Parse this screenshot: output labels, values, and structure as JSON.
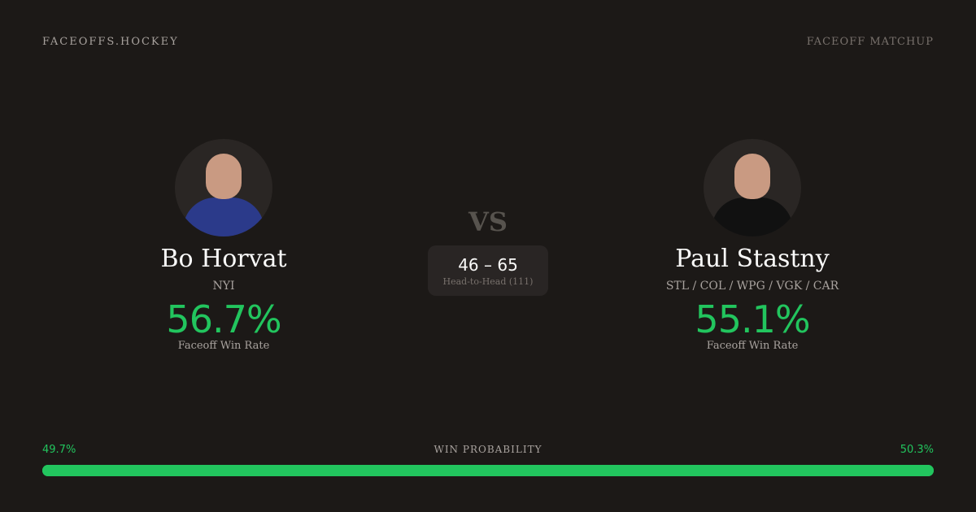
{
  "header": {
    "brand": "FACEOFFS.HOCKEY",
    "page_kind": "FACEOFF MATCHUP"
  },
  "players": [
    {
      "name": "Bo Horvat",
      "team": "NYI",
      "win_rate": "56.7%",
      "win_rate_label": "Faceoff Win Rate",
      "jersey_color": "#2b3a8a"
    },
    {
      "name": "Paul Stastny",
      "team": "STL / COL / WPG / VGK / CAR",
      "win_rate": "55.1%",
      "win_rate_label": "Faceoff Win Rate",
      "jersey_color": "#111111"
    }
  ],
  "vs_label": "VS",
  "head_to_head": {
    "score": "46 – 65",
    "label": "Head-to-Head (111)"
  },
  "win_probability": {
    "label": "WIN PROBABILITY",
    "left": "49.7%",
    "right": "50.3%",
    "left_value": 49.7,
    "right_value": 50.3,
    "color": "#22c55e"
  }
}
